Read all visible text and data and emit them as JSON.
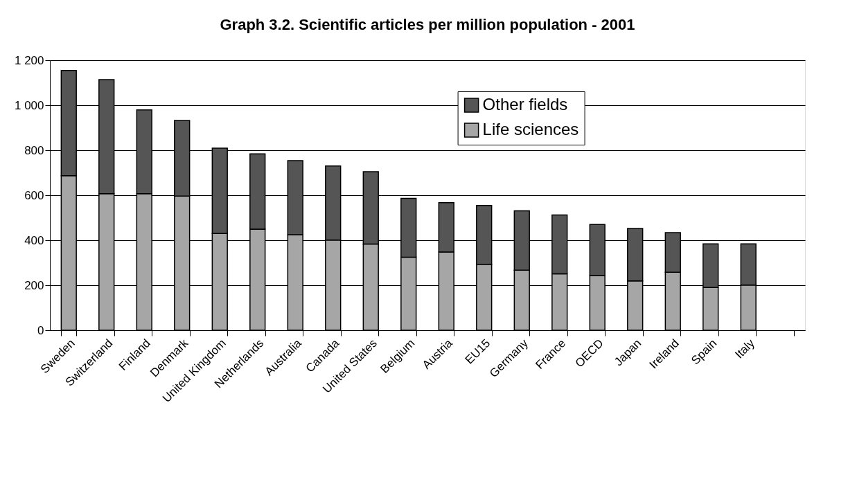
{
  "chart_data": {
    "type": "bar",
    "title": "Graph 3.2. Scientific articles per million population - 2001",
    "categories": [
      "Sweden",
      "Switzerland",
      "Finland",
      "Denmark",
      "United Kingdom",
      "Netherlands",
      "Australia",
      "Canada",
      "United States",
      "Belgium",
      "Austria",
      "EU15",
      "Germany",
      "France",
      "OECD",
      "Japan",
      "Ireland",
      "Spain",
      "Italy",
      null
    ],
    "stacked": true,
    "series": [
      {
        "name": "Life sciences",
        "color": "#a6a6a6",
        "values": [
          687,
          607,
          607,
          596,
          430,
          449,
          425,
          401,
          383,
          325,
          348,
          293,
          267,
          251,
          243,
          219,
          258,
          190,
          201,
          null
        ]
      },
      {
        "name": "Other fields",
        "color": "#555555",
        "values": [
          468,
          507,
          372,
          336,
          379,
          335,
          329,
          329,
          322,
          261,
          219,
          262,
          264,
          261,
          227,
          233,
          176,
          194,
          183,
          null
        ]
      }
    ],
    "ylim": [
      0,
      1200
    ],
    "yticks": [
      0,
      200,
      400,
      600,
      800,
      {
        "value": 1000,
        "label": "1 000"
      },
      {
        "value": 1200,
        "label": "1 200"
      }
    ],
    "grid": "y",
    "legend": "top"
  }
}
